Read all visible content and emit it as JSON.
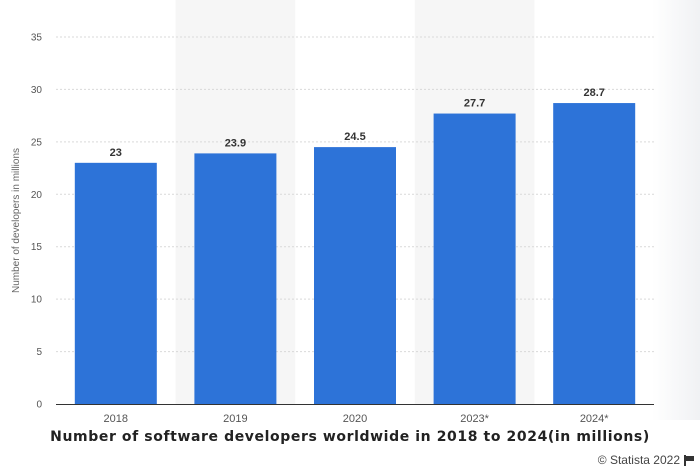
{
  "chart_data": {
    "type": "bar",
    "title": "Number of software developers worldwide in 2018 to 2024(in millions)",
    "xlabel": "",
    "ylabel": "Number of developers in millions",
    "categories": [
      "2018",
      "2019",
      "2020",
      "2023*",
      "2024*"
    ],
    "values": [
      23,
      23.9,
      24.5,
      27.7,
      28.7
    ],
    "value_labels": [
      "23",
      "23.9",
      "24.5",
      "27.7",
      "28.7"
    ],
    "ylim": [
      0,
      35
    ],
    "yticks": [
      0,
      5,
      10,
      15,
      20,
      25,
      30,
      35
    ],
    "yticklabels": [
      "0",
      "5",
      "10",
      "15",
      "20",
      "25",
      "30",
      "35"
    ],
    "grid": true,
    "legend": "none",
    "colors": {
      "bar": "#2d73d8",
      "band": "#f6f6f6",
      "grid": "#d9d9d9",
      "axis": "#333333"
    }
  },
  "footer": {
    "credit": "© Statista 2022",
    "flag_icon": "flag-icon"
  }
}
